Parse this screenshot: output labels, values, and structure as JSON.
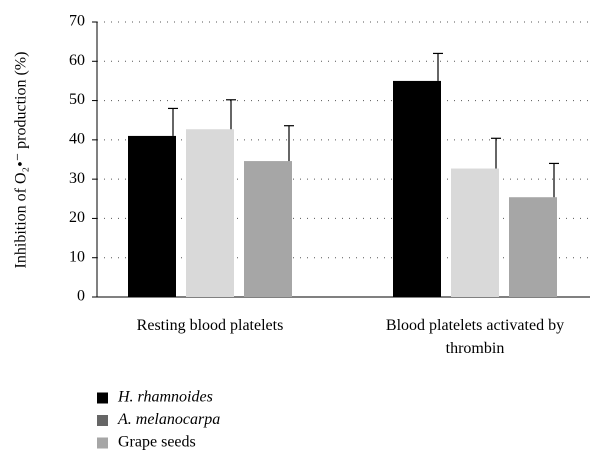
{
  "chart_data": {
    "type": "bar",
    "ylabel": "Inhibition of O₂•⁻ production (%)",
    "categories": [
      "Resting blood platelets",
      "Blood platelets activated by thrombin"
    ],
    "series": [
      {
        "name": "H. rhamnoides",
        "color": "#000000",
        "legend_color": "#000000",
        "italic": true,
        "values": [
          41,
          55
        ],
        "errors": [
          7,
          7
        ]
      },
      {
        "name": "A. melanocarpa",
        "color": "#d9d9d9",
        "legend_color": "#666666",
        "italic": true,
        "values": [
          42.7,
          32.7
        ],
        "errors": [
          7.5,
          7.7
        ]
      },
      {
        "name": "Grape seeds",
        "color": "#a6a6a6",
        "legend_color": "#a6a6a6",
        "italic": false,
        "values": [
          34.6,
          25.4
        ],
        "errors": [
          9,
          8.6
        ]
      }
    ],
    "ylim": [
      0,
      70
    ],
    "yticks": [
      0,
      10,
      20,
      30,
      40,
      50,
      60,
      70
    ],
    "grid": true
  }
}
